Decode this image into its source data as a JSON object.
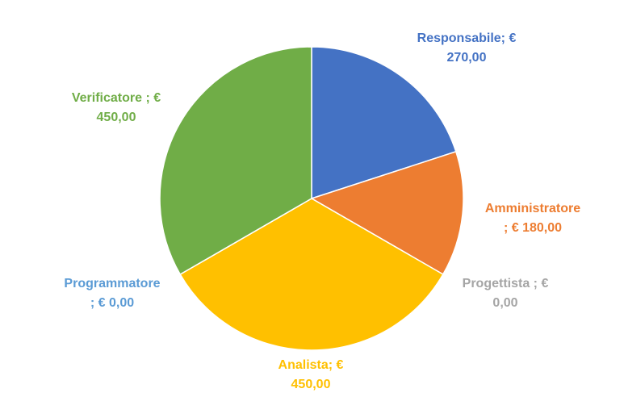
{
  "chart_data": {
    "type": "pie",
    "title": "",
    "categories": [
      "Responsabile",
      "Amministratore",
      "Progettista",
      "Analista",
      "Programmatore",
      "Verificatore"
    ],
    "values": [
      270,
      180,
      0,
      450,
      0,
      450
    ],
    "colors": [
      "#4472C4",
      "#ED7D31",
      "#A5A5A5",
      "#FFC000",
      "#5B9BD5",
      "#70AD47"
    ],
    "start_angle_deg": 0,
    "direction": "clockwise",
    "legend": "none",
    "data_labels": [
      {
        "line1": "Responsabile; €",
        "line2": "270,00"
      },
      {
        "line1": "Amministratore",
        "line2": "; € 180,00"
      },
      {
        "line1": "Progettista ; €",
        "line2": "0,00"
      },
      {
        "line1": "Analista; €",
        "line2": "450,00"
      },
      {
        "line1": "Programmatore",
        "line2": "; € 0,00"
      },
      {
        "line1": "Verificatore ; €",
        "line2": "450,00"
      }
    ]
  }
}
